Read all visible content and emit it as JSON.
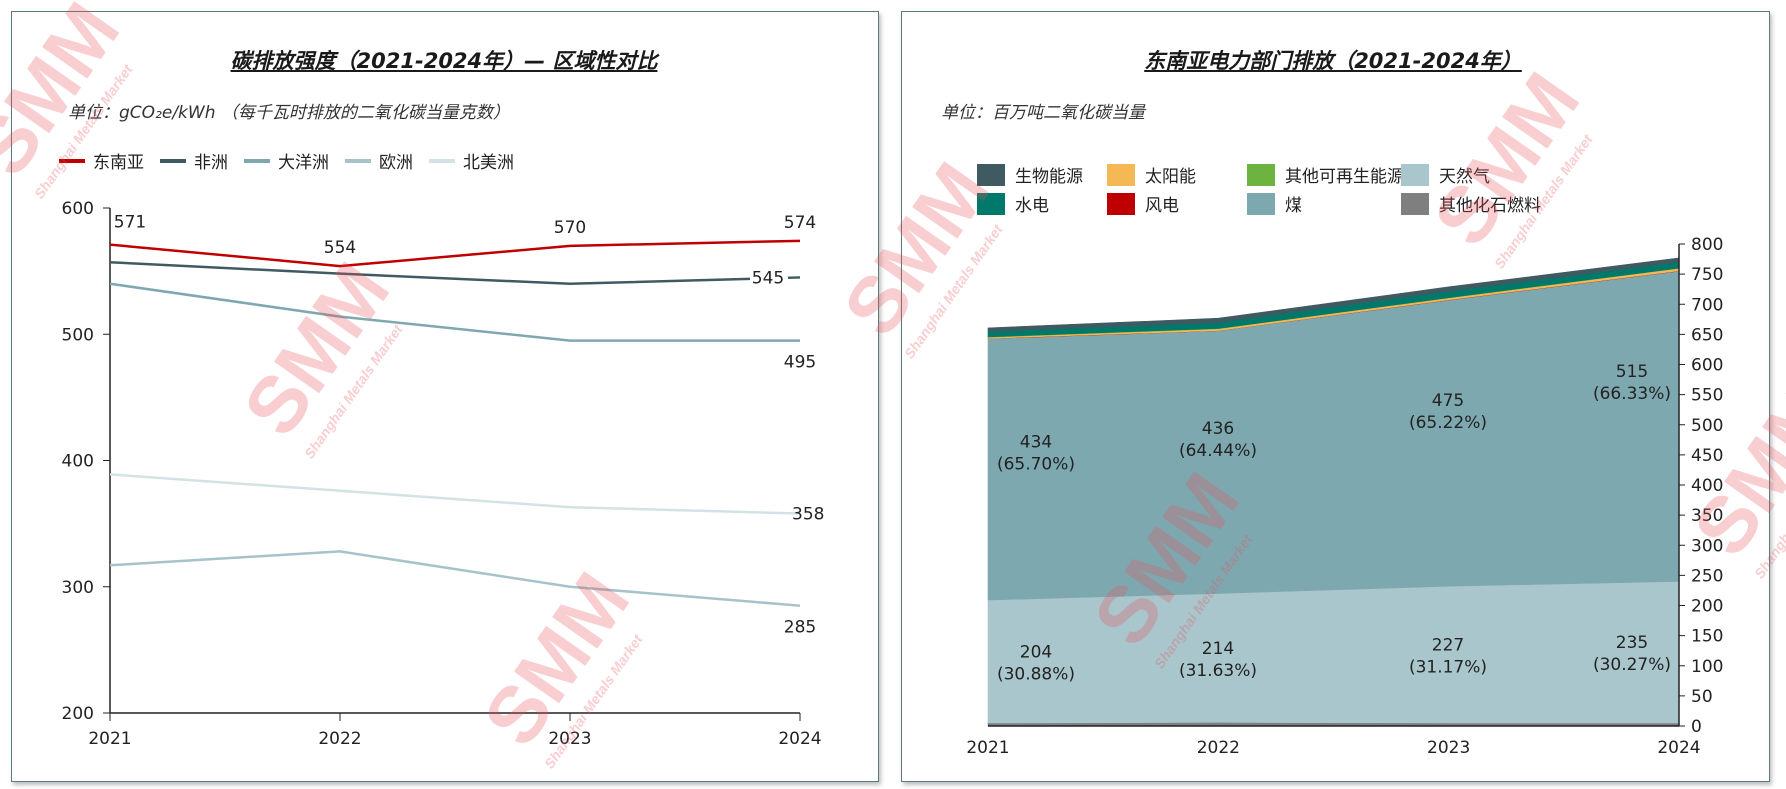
{
  "watermark": {
    "logo": "SMM",
    "sub": "Shanghai Metals Market"
  },
  "chart_data": [
    {
      "type": "line",
      "title": "碳排放强度（2021-2024年）— 区域性对比",
      "unit": "单位：gCO₂e/kWh （每千瓦时排放的二氧化碳当量克数）",
      "categories": [
        "2021",
        "2022",
        "2023",
        "2024"
      ],
      "ylim": [
        200,
        600
      ],
      "yticks": [
        "200",
        "300",
        "400",
        "500",
        "600"
      ],
      "legend": "top-left",
      "series": [
        {
          "name": "东南亚",
          "color": "#C00000",
          "values": [
            571,
            554,
            570,
            574
          ],
          "labels": [
            "571",
            "554",
            "570",
            "574"
          ]
        },
        {
          "name": "非洲",
          "color": "#3F5A61",
          "values": [
            557,
            548,
            540,
            545
          ],
          "labels": [
            "",
            "",
            "",
            "545"
          ]
        },
        {
          "name": "大洋洲",
          "color": "#7FA7AF",
          "values": [
            540,
            514,
            495,
            495
          ],
          "labels": [
            "",
            "",
            "",
            "495"
          ]
        },
        {
          "name": "欧洲",
          "color": "#A5C3C9",
          "values": [
            317,
            328,
            300,
            285
          ],
          "labels": [
            "",
            "",
            "",
            "285"
          ]
        },
        {
          "name": "北美洲",
          "color": "#D3E2E5",
          "values": [
            389,
            376,
            363,
            358
          ],
          "labels": [
            "",
            "",
            "",
            "358"
          ]
        }
      ]
    },
    {
      "type": "area",
      "title": "东南亚电力部门排放（2021-2024年）",
      "unit": "单位：百万吨二氧化碳当量",
      "categories": [
        "2021",
        "2022",
        "2023",
        "2024"
      ],
      "ylim": [
        0,
        800
      ],
      "yticks": [
        "0",
        "50",
        "100",
        "150",
        "200",
        "250",
        "300",
        "350",
        "400",
        "450",
        "500",
        "550",
        "600",
        "650",
        "700",
        "750",
        "800"
      ],
      "legend_order": [
        "生物能源",
        "太阳能",
        "其他可再生能源",
        "天然气",
        "水电",
        "风电",
        "煤",
        "其他化石燃料"
      ],
      "series": [
        {
          "name": "其他化石燃料",
          "color": "#7F7F7F",
          "values": [
            5,
            6,
            5,
            5
          ]
        },
        {
          "name": "天然气",
          "color": "#A9C6CC",
          "values": [
            204,
            214,
            227,
            235
          ],
          "labels": [
            "204\n(30.88%)",
            "214\n(31.63%)",
            "227\n(31.17%)",
            "235\n(30.27%)"
          ]
        },
        {
          "name": "煤",
          "color": "#7EA8B0",
          "values": [
            434,
            436,
            475,
            515
          ],
          "labels": [
            "434\n(65.70%)",
            "436\n(64.44%)",
            "475\n(65.22%)",
            "515\n(66.33%)"
          ]
        },
        {
          "name": "风电",
          "color": "#C00000",
          "values": [
            0.3,
            0.3,
            0.4,
            0.5
          ]
        },
        {
          "name": "太阳能",
          "color": "#F4B955",
          "values": [
            2,
            3,
            3,
            4
          ]
        },
        {
          "name": "其他可再生能源",
          "color": "#6DB33F",
          "values": [
            0.5,
            0.5,
            0.5,
            0.5
          ]
        },
        {
          "name": "水电",
          "color": "#00796B",
          "values": [
            9,
            10,
            11,
            10
          ]
        },
        {
          "name": "生物能源",
          "color": "#3F5A61",
          "values": [
            6,
            7,
            7,
            6.9
          ]
        }
      ]
    }
  ]
}
